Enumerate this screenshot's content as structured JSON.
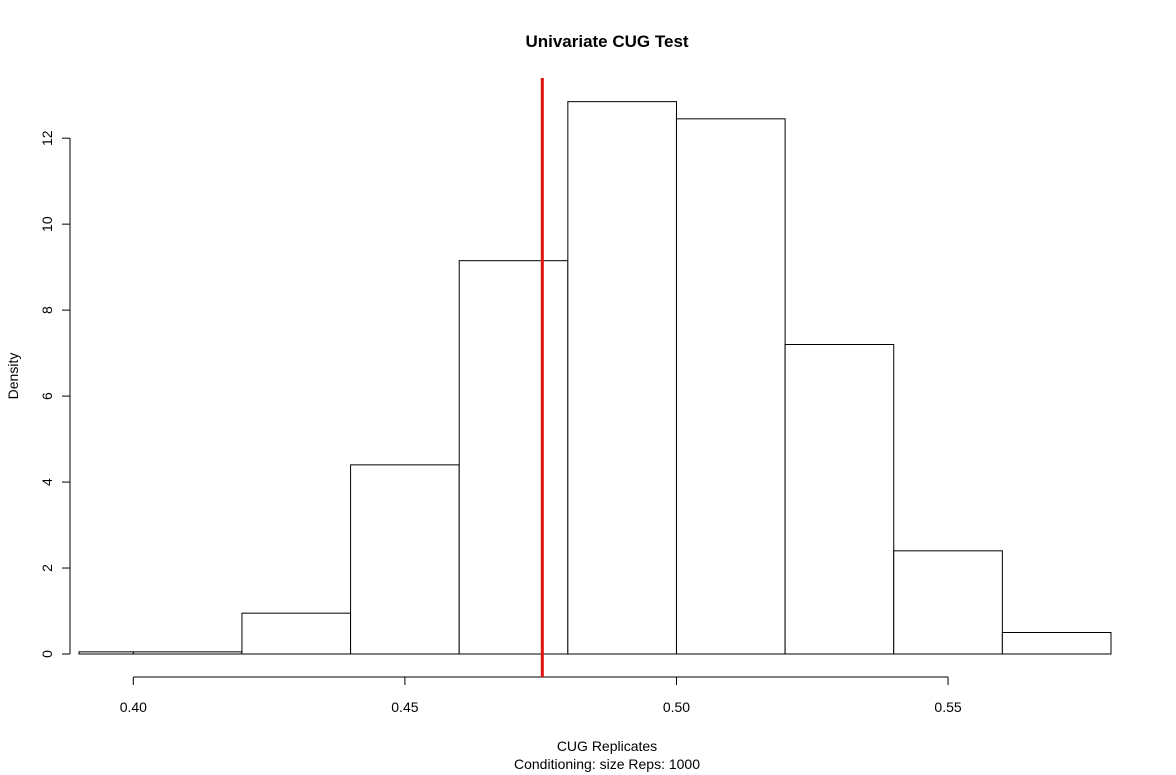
{
  "chart_data": {
    "type": "bar",
    "title": "Univariate CUG Test",
    "xlabel": "CUG Replicates",
    "sublabel": "Conditioning: size Reps: 1000",
    "ylabel": "Density",
    "xlim": [
      0.39,
      0.58
    ],
    "ylim": [
      0,
      13.4
    ],
    "x_ticks": [
      0.4,
      0.45,
      0.5,
      0.55
    ],
    "x_tick_labels": [
      "0.40",
      "0.45",
      "0.50",
      "0.55"
    ],
    "y_ticks": [
      0,
      2,
      4,
      6,
      8,
      10,
      12
    ],
    "y_tick_labels": [
      "0",
      "2",
      "4",
      "6",
      "8",
      "10",
      "12"
    ],
    "bins": [
      {
        "start": 0.39,
        "end": 0.4,
        "density": 0.05
      },
      {
        "start": 0.4,
        "end": 0.42,
        "density": 0.05
      },
      {
        "start": 0.42,
        "end": 0.44,
        "density": 0.95
      },
      {
        "start": 0.44,
        "end": 0.46,
        "density": 4.4
      },
      {
        "start": 0.46,
        "end": 0.48,
        "density": 9.15
      },
      {
        "start": 0.48,
        "end": 0.5,
        "density": 12.85
      },
      {
        "start": 0.5,
        "end": 0.52,
        "density": 12.45
      },
      {
        "start": 0.52,
        "end": 0.54,
        "density": 7.2
      },
      {
        "start": 0.54,
        "end": 0.56,
        "density": 2.4
      },
      {
        "start": 0.56,
        "end": 0.58,
        "density": 0.5
      }
    ],
    "observed_value": 0.4753,
    "observed_color": "#e01010",
    "bar_fill": "#ffffff",
    "bar_stroke": "#000000",
    "grid": false
  }
}
